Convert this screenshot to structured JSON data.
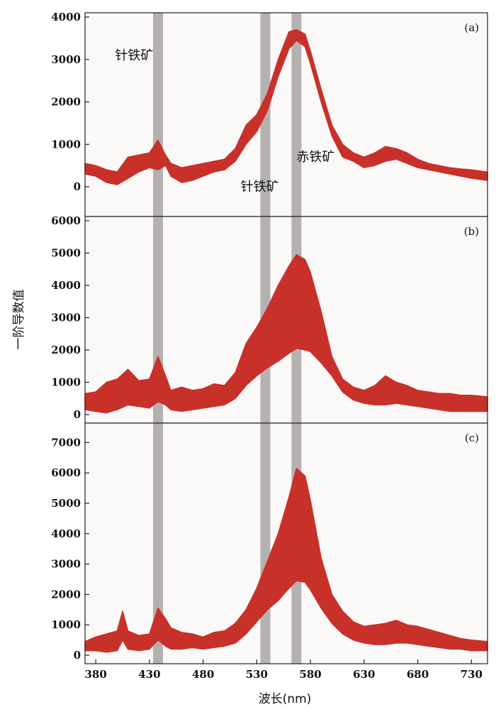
{
  "chart_data": {
    "type": "area",
    "xlabel": "波长(nm)",
    "ylabel": "一阶导数值",
    "xlim": [
      370,
      745
    ],
    "xticks": [
      380,
      430,
      480,
      530,
      580,
      630,
      680,
      730
    ],
    "highlight_bands": [
      438,
      538,
      567
    ],
    "series_color": "#c8312a",
    "band_color": "#a9a5a5",
    "panels": [
      {
        "label": "(a)",
        "ylim": [
          -500,
          4000
        ],
        "yticks": [
          0,
          1000,
          2000,
          3000,
          4000
        ],
        "annotations": [
          {
            "text": "针铁矿",
            "x": 398,
            "y": 3000
          },
          {
            "text": "赤铁矿",
            "x": 567,
            "y": 600
          },
          {
            "text": "针铁矿",
            "x": 515,
            "y": -100
          }
        ],
        "x": [
          370,
          380,
          390,
          400,
          410,
          420,
          430,
          438,
          445,
          450,
          460,
          470,
          480,
          490,
          500,
          510,
          520,
          530,
          540,
          550,
          560,
          567,
          575,
          580,
          590,
          600,
          610,
          620,
          630,
          640,
          650,
          660,
          670,
          680,
          690,
          700,
          710,
          720,
          730,
          745
        ],
        "lower": [
          300,
          250,
          100,
          50,
          200,
          350,
          450,
          400,
          500,
          250,
          100,
          150,
          250,
          350,
          400,
          600,
          1000,
          1300,
          1800,
          2600,
          3250,
          3450,
          3300,
          2900,
          2000,
          1200,
          700,
          600,
          450,
          500,
          600,
          650,
          550,
          450,
          400,
          350,
          300,
          250,
          200,
          150
        ],
        "upper": [
          550,
          500,
          400,
          350,
          700,
          750,
          800,
          1100,
          750,
          550,
          450,
          500,
          550,
          600,
          650,
          900,
          1450,
          1700,
          2200,
          3000,
          3650,
          3700,
          3600,
          3200,
          2300,
          1450,
          1000,
          800,
          700,
          800,
          950,
          900,
          800,
          650,
          550,
          500,
          450,
          420,
          400,
          350
        ]
      },
      {
        "label": "(b)",
        "ylim": [
          0,
          6000
        ],
        "yticks": [
          0,
          1000,
          2000,
          3000,
          4000,
          5000,
          6000
        ],
        "x": [
          370,
          380,
          390,
          400,
          410,
          420,
          430,
          438,
          445,
          450,
          460,
          470,
          480,
          490,
          500,
          510,
          520,
          530,
          540,
          550,
          560,
          567,
          575,
          580,
          590,
          600,
          610,
          620,
          630,
          640,
          650,
          660,
          670,
          680,
          690,
          700,
          710,
          720,
          730,
          745
        ],
        "lower": [
          150,
          100,
          50,
          150,
          300,
          250,
          200,
          400,
          300,
          150,
          100,
          150,
          200,
          250,
          300,
          500,
          900,
          1200,
          1450,
          1650,
          1900,
          2050,
          2000,
          1950,
          1600,
          1200,
          700,
          450,
          350,
          300,
          300,
          350,
          300,
          250,
          200,
          150,
          100,
          100,
          100,
          100
        ],
        "upper": [
          650,
          700,
          1000,
          1100,
          1400,
          1050,
          1100,
          1800,
          1200,
          750,
          850,
          750,
          800,
          950,
          900,
          1300,
          2200,
          2700,
          3300,
          4000,
          4600,
          4950,
          4800,
          4400,
          3200,
          1800,
          1100,
          850,
          750,
          900,
          1200,
          1000,
          900,
          750,
          700,
          650,
          650,
          600,
          600,
          550
        ]
      },
      {
        "label": "(c)",
        "ylim": [
          0,
          7500
        ],
        "yticks": [
          0,
          1000,
          2000,
          3000,
          4000,
          5000,
          6000,
          7000
        ],
        "x": [
          370,
          380,
          390,
          400,
          405,
          410,
          420,
          430,
          438,
          445,
          450,
          460,
          470,
          480,
          490,
          500,
          510,
          520,
          530,
          540,
          550,
          560,
          567,
          575,
          580,
          590,
          600,
          610,
          620,
          630,
          640,
          650,
          660,
          670,
          680,
          690,
          700,
          710,
          720,
          730,
          745
        ],
        "lower": [
          150,
          150,
          100,
          150,
          500,
          200,
          150,
          200,
          500,
          300,
          200,
          200,
          250,
          200,
          250,
          300,
          400,
          700,
          1100,
          1500,
          1800,
          2200,
          2450,
          2400,
          2150,
          1550,
          1050,
          700,
          500,
          400,
          350,
          350,
          400,
          400,
          350,
          300,
          250,
          200,
          200,
          150,
          150
        ],
        "upper": [
          450,
          600,
          700,
          800,
          1450,
          800,
          650,
          700,
          1550,
          1200,
          900,
          750,
          700,
          600,
          750,
          800,
          1050,
          1500,
          2200,
          3100,
          4000,
          5200,
          6150,
          5900,
          5100,
          3200,
          2000,
          1450,
          1100,
          950,
          1000,
          1050,
          1150,
          1000,
          950,
          850,
          750,
          650,
          550,
          500,
          450
        ]
      }
    ]
  }
}
